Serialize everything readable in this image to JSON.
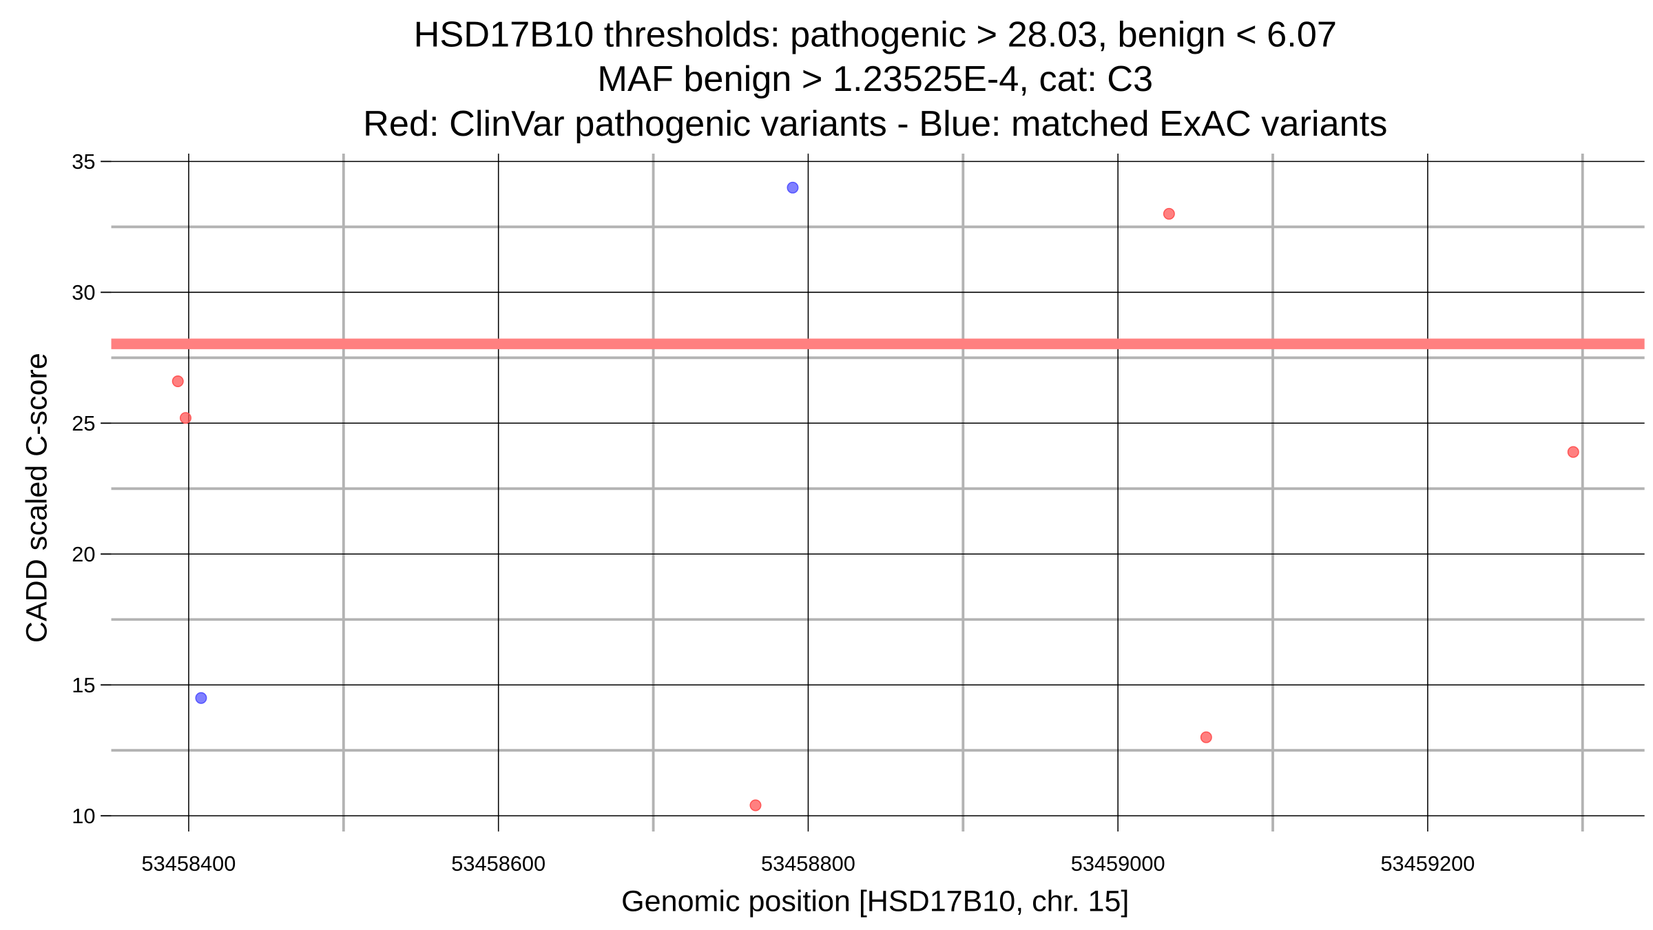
{
  "chart_data": {
    "type": "scatter",
    "title": [
      "HSD17B10 thresholds: pathogenic > 28.03, benign < 6.07",
      "MAF benign > 1.23525E-4, cat: C3",
      "Red: ClinVar pathogenic variants - Blue: matched ExAC variants"
    ],
    "xlabel": "Genomic position [HSD17B10, chr. 15]",
    "ylabel": "CADD scaled C-score",
    "xlim": [
      53458350,
      53459340
    ],
    "ylim": [
      9.4,
      35.3
    ],
    "xticks": [
      53458400,
      53458600,
      53458800,
      53459000,
      53459200
    ],
    "xtick_labels": [
      "53458400",
      "53458600",
      "53458800",
      "53459000",
      "53459200"
    ],
    "xminor": [
      53458500,
      53458700,
      53458900,
      53459100,
      53459300
    ],
    "yticks": [
      10,
      15,
      20,
      25,
      30,
      35
    ],
    "ytick_labels": [
      "10",
      "15",
      "20",
      "25",
      "30",
      "35"
    ],
    "yminor": [
      12.5,
      17.5,
      22.5,
      27.5,
      32.5
    ],
    "grid": true,
    "threshold": {
      "value": 28.03,
      "color": "#ff8080"
    },
    "series": [
      {
        "name": "ClinVar pathogenic",
        "color": "#ff5555",
        "points": [
          [
            53458393,
            26.6
          ],
          [
            53458398,
            25.2
          ],
          [
            53458766,
            10.4
          ],
          [
            53459033,
            33.0
          ],
          [
            53459057,
            13.0
          ],
          [
            53459294,
            23.9
          ]
        ]
      },
      {
        "name": "matched ExAC",
        "color": "#5555ff",
        "points": [
          [
            53458408,
            14.5
          ],
          [
            53458790,
            34.0
          ]
        ]
      }
    ]
  }
}
